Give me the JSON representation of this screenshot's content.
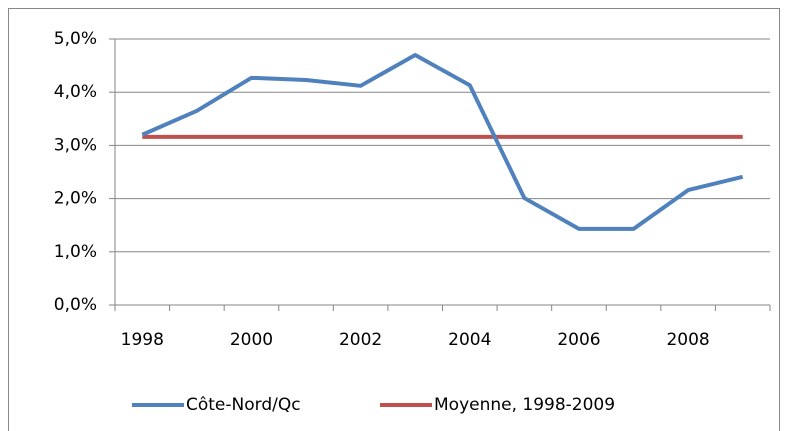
{
  "chart_data": {
    "type": "line",
    "categories": [
      "1998",
      null,
      "2000",
      null,
      "2002",
      null,
      "2004",
      null,
      "2006",
      null,
      "2008",
      null
    ],
    "series": [
      {
        "name": "Côte-Nord/Qc",
        "color": "#4f81bd",
        "values": [
          3.2,
          3.65,
          4.27,
          4.23,
          4.12,
          4.7,
          4.13,
          2.01,
          1.43,
          1.43,
          2.16,
          2.41
        ]
      },
      {
        "name": "Moyenne, 1998-2009",
        "color": "#c0504d",
        "values": [
          3.16,
          3.16,
          3.16,
          3.16,
          3.16,
          3.16,
          3.16,
          3.16,
          3.16,
          3.16,
          3.16,
          3.16
        ]
      }
    ],
    "ylim": [
      0,
      5
    ],
    "yticks": [
      {
        "value": 0,
        "label": "0,0%"
      },
      {
        "value": 1,
        "label": "1,0%"
      },
      {
        "value": 2,
        "label": "2,0%"
      },
      {
        "value": 3,
        "label": "3,0%"
      },
      {
        "value": 4,
        "label": "4,0%"
      },
      {
        "value": 5,
        "label": "5,0%"
      }
    ],
    "grid": true,
    "legend": "bottom"
  }
}
